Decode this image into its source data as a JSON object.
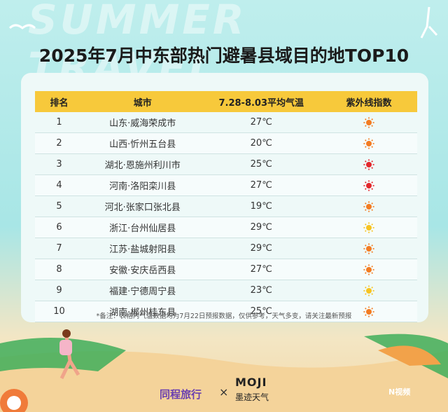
{
  "watermark": "SUMMER TRAVEL",
  "title": "2025年7月中东部热门避暑县域目的地TOP10",
  "table": {
    "headers": [
      "排名",
      "城市",
      "7.28-8.03平均气温",
      "紫外线指数"
    ],
    "rows": [
      {
        "rank": "1",
        "city": "山东·威海荣成市",
        "temp": "27℃",
        "uv_color": "#f37b21"
      },
      {
        "rank": "2",
        "city": "山西·忻州五台县",
        "temp": "20℃",
        "uv_color": "#f37b21"
      },
      {
        "rank": "3",
        "city": "湖北·恩施州利川市",
        "temp": "25℃",
        "uv_color": "#e3262b"
      },
      {
        "rank": "4",
        "city": "河南·洛阳栾川县",
        "temp": "27℃",
        "uv_color": "#e3262b"
      },
      {
        "rank": "5",
        "city": "河北·张家口张北县",
        "temp": "19℃",
        "uv_color": "#f37b21"
      },
      {
        "rank": "6",
        "city": "浙江·台州仙居县",
        "temp": "29℃",
        "uv_color": "#f7c320"
      },
      {
        "rank": "7",
        "city": "江苏·盐城射阳县",
        "temp": "29℃",
        "uv_color": "#f37b21"
      },
      {
        "rank": "8",
        "city": "安徽·安庆岳西县",
        "temp": "27℃",
        "uv_color": "#f37b21"
      },
      {
        "rank": "9",
        "city": "福建·宁德周宁县",
        "temp": "23℃",
        "uv_color": "#f7c320"
      },
      {
        "rank": "10",
        "city": "湖南·郴州桂东县",
        "temp": "25℃",
        "uv_color": "#f37b21"
      }
    ]
  },
  "note": "*备注：表格内气温数据均为7月22日预报数据，仅供参考，天气多变，请关注最新预报",
  "logos": {
    "brand1": "同程旅行",
    "cross": "×",
    "brand2": "MOJI",
    "brand2_sub": "墨迹天气",
    "watermark2": "N视频"
  }
}
